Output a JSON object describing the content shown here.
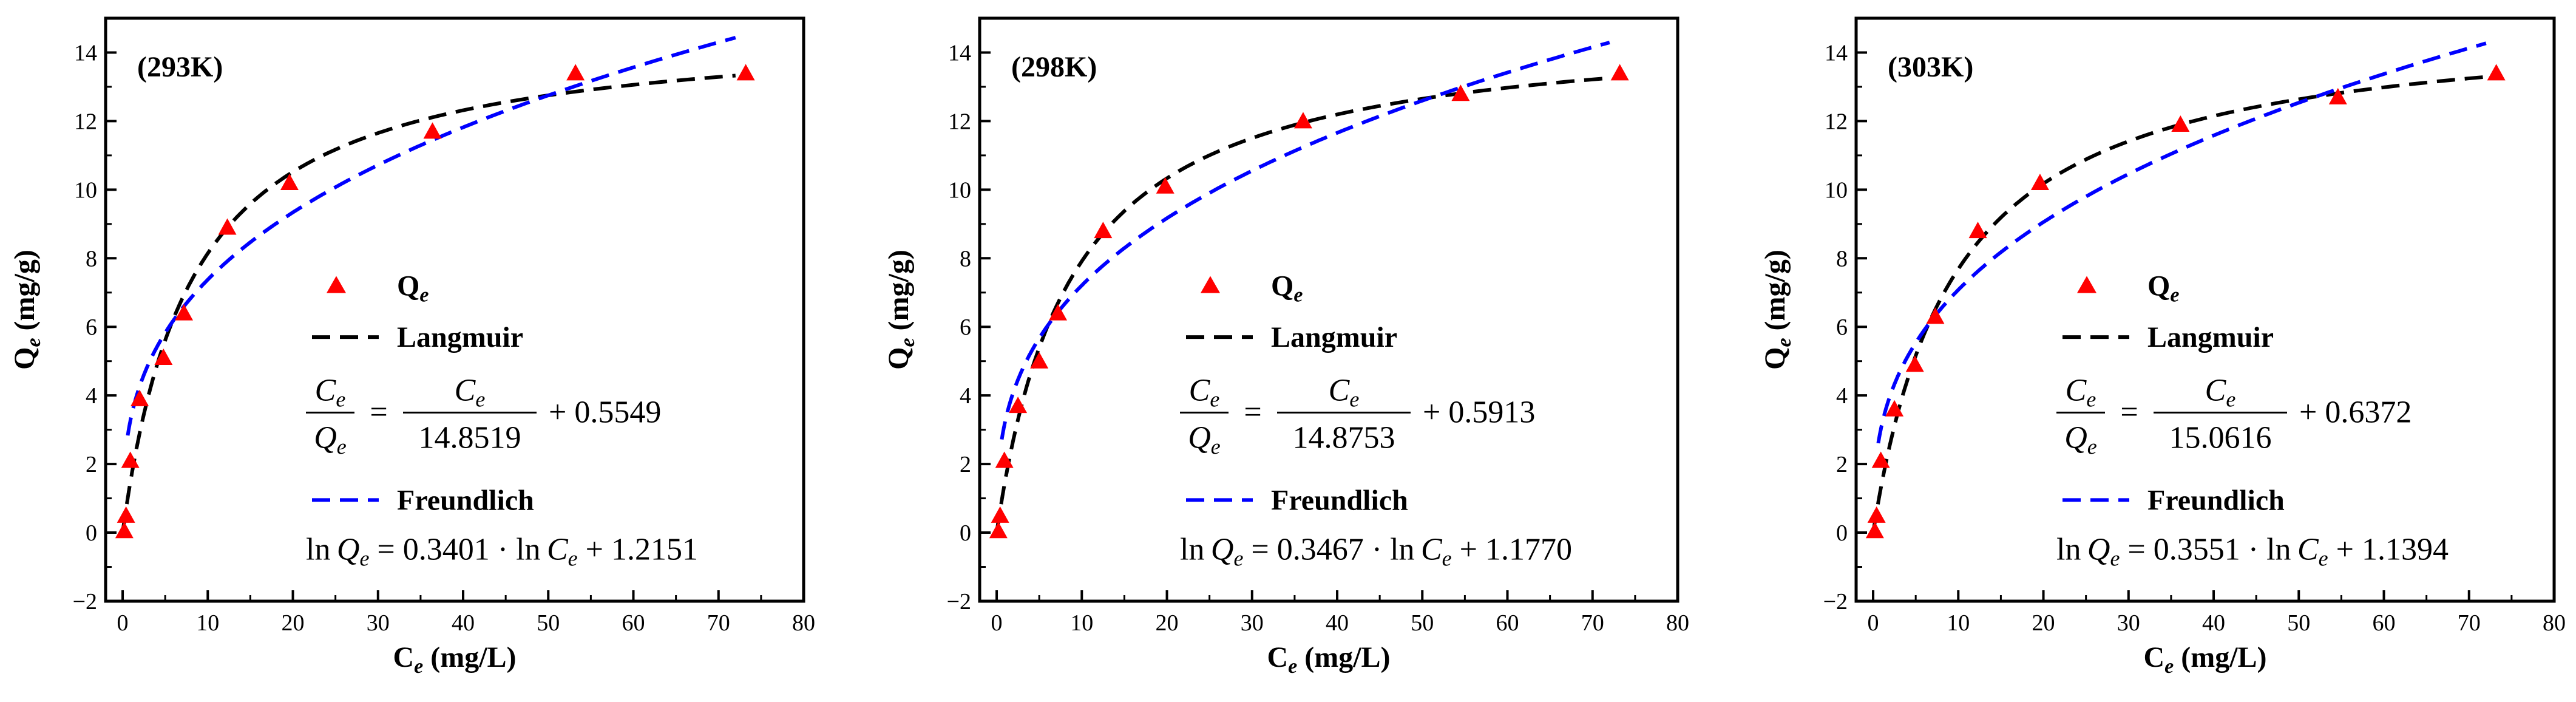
{
  "colors": {
    "marker": "#ff0000",
    "langmuir": "#000000",
    "freundlich": "#0000ff",
    "axis": "#000000"
  },
  "chart_data": [
    {
      "type": "scatter",
      "title": "(293K)",
      "xlabel": "C_e (mg/L)",
      "ylabel": "Q_e (mg/g)",
      "xlim": [
        -2,
        80
      ],
      "ylim": [
        -2,
        15
      ],
      "xticks": [
        0,
        10,
        20,
        30,
        40,
        50,
        60,
        70,
        80
      ],
      "yticks": [
        -2,
        0,
        2,
        4,
        6,
        8,
        10,
        12,
        14
      ],
      "legend": {
        "points": "Q",
        "points_sub": "e",
        "langmuir": "Langmuir",
        "freundlich": "Freundlich"
      },
      "points": {
        "x": [
          0.2,
          0.4,
          0.9,
          2.0,
          4.8,
          7.2,
          12.3,
          19.6,
          36.4,
          53.2,
          73.2
        ],
        "y": [
          0.05,
          0.5,
          2.1,
          3.9,
          5.1,
          6.4,
          8.9,
          10.2,
          11.7,
          13.4,
          13.4
        ]
      },
      "langmuir": {
        "qmax": 14.8519,
        "intercept": 0.5549,
        "equation": {
          "lhs_num": "C",
          "lhs_den": "Q",
          "sub": "e",
          "eq": "=",
          "rhs_num": "C",
          "rhs_den": "14.8519",
          "plus": "+ 0.5549"
        }
      },
      "freundlich": {
        "slope": 0.3401,
        "intercept": 1.2151,
        "equation": {
          "ln": "ln",
          "Q": "Q",
          "C": "C",
          "sub": "e",
          "mid": "= 0.3401 ·",
          "tail": "+ 1.2151"
        }
      },
      "x_curve_max": 72
    },
    {
      "type": "scatter",
      "title": "(298K)",
      "xlabel": "C_e (mg/L)",
      "ylabel": "Q_e (mg/g)",
      "xlim": [
        -2,
        80
      ],
      "ylim": [
        -2,
        15
      ],
      "xticks": [
        0,
        10,
        20,
        30,
        40,
        50,
        60,
        70,
        80
      ],
      "yticks": [
        -2,
        0,
        2,
        4,
        6,
        8,
        10,
        12,
        14
      ],
      "legend": {
        "points": "Q",
        "points_sub": "e",
        "langmuir": "Langmuir",
        "freundlich": "Freundlich"
      },
      "points": {
        "x": [
          0.2,
          0.4,
          0.9,
          2.5,
          5.0,
          7.2,
          12.5,
          19.8,
          36.0,
          54.5,
          73.2
        ],
        "y": [
          0.05,
          0.5,
          2.1,
          3.7,
          5.0,
          6.4,
          8.8,
          10.1,
          12.0,
          12.8,
          13.4
        ]
      },
      "langmuir": {
        "qmax": 14.8753,
        "intercept": 0.5913,
        "equation": {
          "lhs_num": "C",
          "lhs_den": "Q",
          "sub": "e",
          "eq": "=",
          "rhs_num": "C",
          "rhs_den": "14.8753",
          "plus": "+ 0.5913"
        }
      },
      "freundlich": {
        "slope": 0.3467,
        "intercept": 1.177,
        "equation": {
          "ln": "ln",
          "Q": "Q",
          "C": "C",
          "sub": "e",
          "mid": "= 0.3467 ·",
          "tail": "+ 1.1770"
        }
      },
      "x_curve_max": 72
    },
    {
      "type": "scatter",
      "title": "(303K)",
      "xlabel": "C_e (mg/L)",
      "ylabel": "Q_e (mg/g)",
      "xlim": [
        -2,
        80
      ],
      "ylim": [
        -2,
        15
      ],
      "xticks": [
        0,
        10,
        20,
        30,
        40,
        50,
        60,
        70,
        80
      ],
      "yticks": [
        -2,
        0,
        2,
        4,
        6,
        8,
        10,
        12,
        14
      ],
      "legend": {
        "points": "Q",
        "points_sub": "e",
        "langmuir": "Langmuir",
        "freundlich": "Freundlich"
      },
      "points": {
        "x": [
          0.2,
          0.4,
          0.9,
          2.5,
          4.9,
          7.3,
          12.3,
          19.6,
          36.1,
          54.6,
          73.2
        ],
        "y": [
          0.05,
          0.5,
          2.1,
          3.6,
          4.9,
          6.3,
          8.8,
          10.2,
          11.9,
          12.7,
          13.4
        ]
      },
      "langmuir": {
        "qmax": 15.0616,
        "intercept": 0.6372,
        "equation": {
          "lhs_num": "C",
          "lhs_den": "Q",
          "sub": "e",
          "eq": "=",
          "rhs_num": "C",
          "rhs_den": "15.0616",
          "plus": "+ 0.6372"
        }
      },
      "freundlich": {
        "slope": 0.3551,
        "intercept": 1.1394,
        "equation": {
          "ln": "ln",
          "Q": "Q",
          "C": "C",
          "sub": "e",
          "mid": "= 0.3551 ·",
          "tail": "+ 1.1394"
        }
      },
      "x_curve_max": 72
    }
  ]
}
